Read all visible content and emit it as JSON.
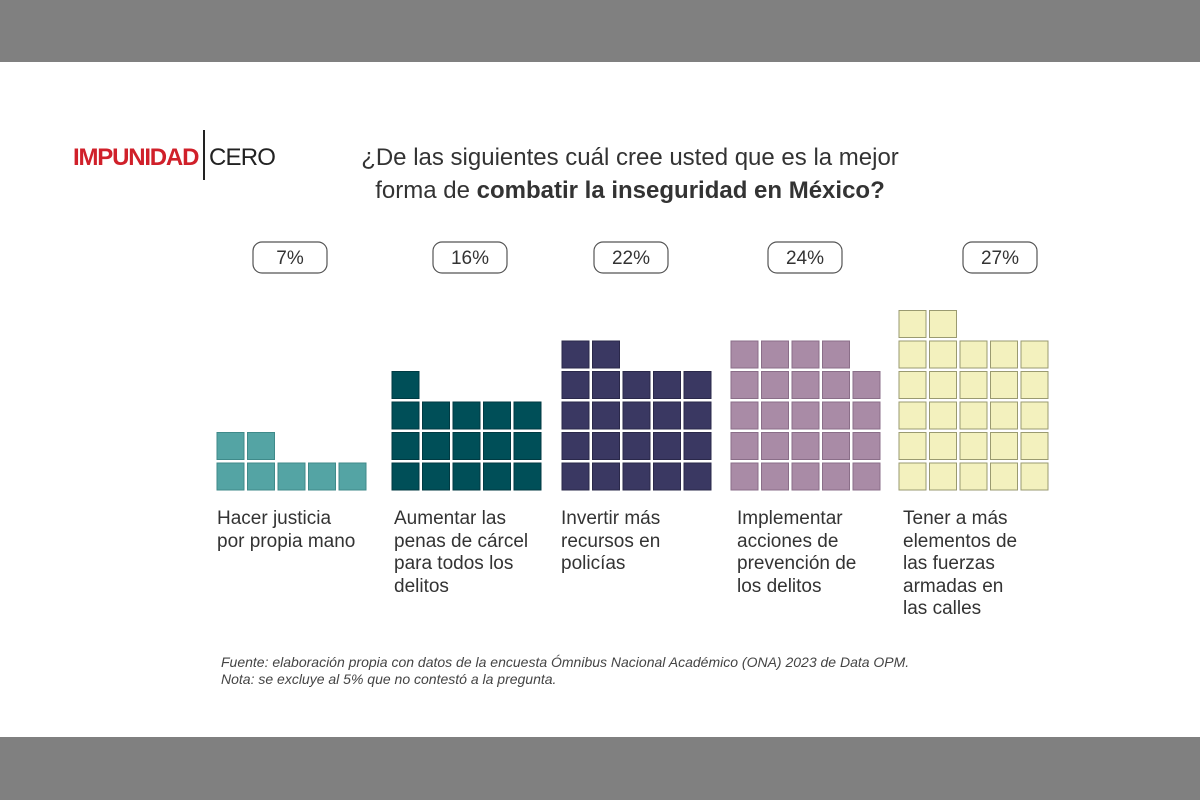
{
  "logo": {
    "main": "IMPUNIDAD",
    "sub": "CERO"
  },
  "title": {
    "line1": "¿De las siguientes cuál cree usted que es la mejor",
    "line2_plain": "forma de ",
    "line2_bold": "combatir la inseguridad en México?"
  },
  "chart_data": {
    "type": "bar",
    "style": "waffle-columns",
    "categories": [
      "Hacer justicia por propia mano",
      "Aumentar las penas de cárcel para todos los delitos",
      "Invertir más recursos en policías",
      "Implementar acciones de prevención de los delitos",
      "Tener a más elementos de las fuerzas armadas en las calles"
    ],
    "values": [
      7,
      16,
      22,
      24,
      27
    ],
    "value_labels": [
      "7%",
      "16%",
      "22%",
      "24%",
      "27%"
    ],
    "category_lines": [
      [
        "Hacer justicia",
        "por propia mano"
      ],
      [
        "Aumentar las",
        "penas de cárcel",
        "para todos los",
        "delitos"
      ],
      [
        "Invertir más",
        "recursos en",
        "policías"
      ],
      [
        "Implementar",
        "acciones de",
        "prevención de",
        "los delitos"
      ],
      [
        "Tener a más",
        "elementos de",
        "las fuerzas",
        "armadas en",
        "las calles"
      ]
    ],
    "colors": [
      "#54a4a4",
      "#004f58",
      "#3a3862",
      "#a98ba6",
      "#f3f1be"
    ],
    "stroke_colors": [
      "#3f8a8a",
      "#003a42",
      "#2a284a",
      "#8a6e88",
      "#9a9a70"
    ],
    "unit": "%",
    "squares_per_row": 5
  },
  "footer": {
    "source": "Fuente: elaboración propia con datos de la encuesta Ómnibus Nacional Académico (ONA) 2023 de Data OPM.",
    "note": "Nota: se excluye al 5% que no contestó a la pregunta."
  }
}
